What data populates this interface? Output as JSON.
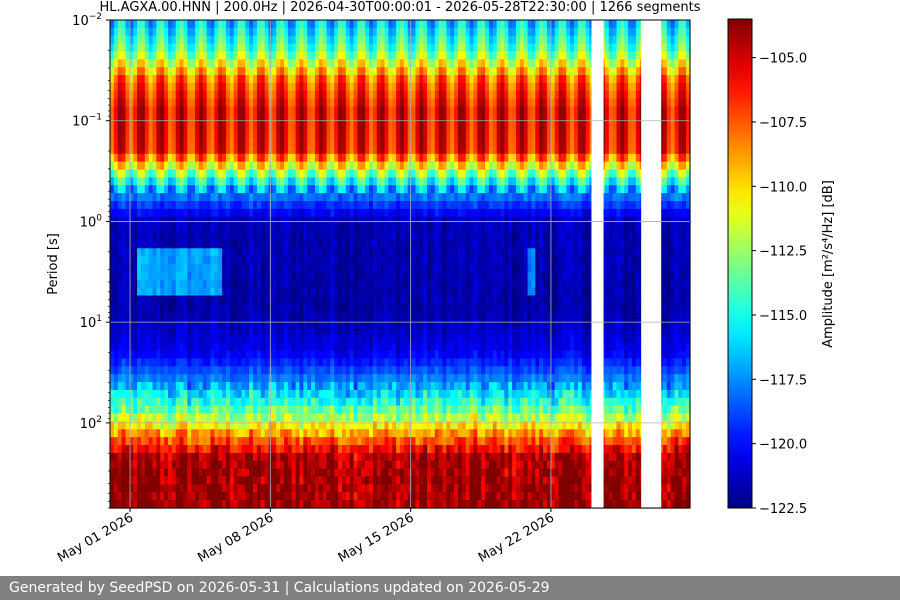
{
  "chart_data": {
    "type": "heatmap",
    "title": "HL.AGXA.00.HNN | 200.0Hz | 2026-04-30T00:00:01 - 2026-05-28T22:30:00 | 1266 segments",
    "ylabel": "Period [s]",
    "colorbar_label": "Amplitude [m²/s⁴/Hz] [dB]",
    "colormap": "jet",
    "x_range": [
      "2026-04-30T00:00:01",
      "2026-05-28T22:30:00"
    ],
    "x_ticks": [
      "May 01 2026",
      "May 08 2026",
      "May 15 2026",
      "May 22 2026"
    ],
    "y_scale": "log",
    "y_inverted": true,
    "y_range": [
      0.01,
      700
    ],
    "y_ticks": [
      {
        "value": 0.01,
        "base": "10",
        "exp": "−2"
      },
      {
        "value": 0.1,
        "base": "10",
        "exp": "−1"
      },
      {
        "value": 1,
        "base": "10",
        "exp": "0"
      },
      {
        "value": 10,
        "base": "10",
        "exp": "1"
      },
      {
        "value": 100,
        "base": "10",
        "exp": "2"
      }
    ],
    "color_range": [
      -122.5,
      -103.5
    ],
    "colorbar_ticks": [
      "−105.0",
      "−107.5",
      "−110.0",
      "−112.5",
      "−115.0",
      "−117.5",
      "−120.0",
      "−122.5"
    ],
    "colorbar_tick_values": [
      -105.0,
      -107.5,
      -110.0,
      -112.5,
      -115.0,
      -117.5,
      -120.0,
      -122.5
    ],
    "data_gaps": [
      [
        "2026-05-24T00:30:00",
        "2026-05-24T15:00:00"
      ],
      [
        "2026-05-26T12:00:00",
        "2026-05-27T12:00:00"
      ]
    ],
    "grid": true,
    "segments": 1266,
    "pattern": {
      "period_bands": [
        {
          "period_range": [
            0.01,
            0.05
          ],
          "level_db": -116
        },
        {
          "period_range": [
            0.05,
            0.3
          ],
          "level_db": -105.5
        },
        {
          "period_range": [
            0.3,
            0.6
          ],
          "level_db": -114
        },
        {
          "period_range": [
            1,
            30
          ],
          "level_db": -121.5
        },
        {
          "period_range": [
            30,
            100
          ],
          "level_db": -116
        },
        {
          "period_range": [
            200,
            700
          ],
          "level_db": -104
        }
      ]
    }
  },
  "footer": {
    "text": "Generated by SeedPSD on 2026-05-31 | Calculations updated on 2026-05-29"
  }
}
